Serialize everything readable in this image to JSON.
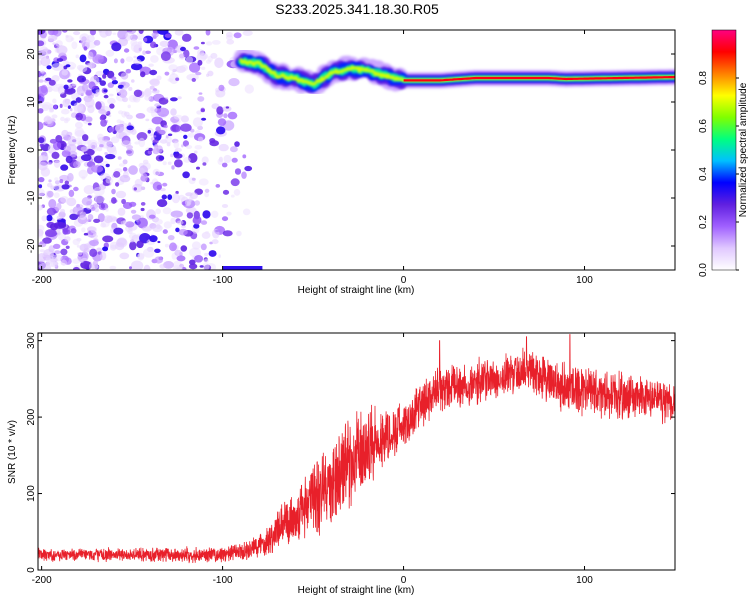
{
  "title": "S233.2025.341.18.30.R05",
  "colors": {
    "snr_line": "#e8202a",
    "frame": "#000000",
    "background": "#ffffff"
  },
  "chart_data": [
    {
      "type": "heatmap",
      "name": "spectrogram",
      "xlabel": "Height of straight line (km)",
      "ylabel": "Frequency (Hz)",
      "xlim": [
        -202,
        150
      ],
      "ylim": [
        -25,
        25
      ],
      "x_ticks": [
        -200,
        -100,
        0,
        100
      ],
      "y_ticks": [
        -20,
        -10,
        0,
        10,
        20
      ],
      "x_tick_labels": [
        "-200",
        "-100",
        "0",
        "100"
      ],
      "y_tick_labels": [
        "-20",
        "-10",
        "0",
        "10",
        "20"
      ],
      "colorbar": {
        "label": "Normalized spectral amplitude",
        "range": [
          0,
          1
        ],
        "ticks": [
          0.0,
          0.2,
          0.4,
          0.6,
          0.8
        ],
        "tick_labels": [
          "0.0",
          "0.2",
          "0.4",
          "0.6",
          "0.8"
        ],
        "colormap": [
          "#ffffff",
          "#e0c8ff",
          "#a060ff",
          "#6020e0",
          "#0000ff",
          "#00c0ff",
          "#00ff80",
          "#80ff00",
          "#ffff00",
          "#ff8000",
          "#ff0000",
          "#ff0080"
        ]
      },
      "signal_ridge": {
        "description_points": [
          {
            "x": -90,
            "y": 18.5
          },
          {
            "x": -80,
            "y": 18.0
          },
          {
            "x": -70,
            "y": 15.5
          },
          {
            "x": -60,
            "y": 15.0
          },
          {
            "x": -50,
            "y": 13.5
          },
          {
            "x": -40,
            "y": 16.0
          },
          {
            "x": -30,
            "y": 17.0
          },
          {
            "x": -20,
            "y": 16.5
          },
          {
            "x": -10,
            "y": 15.5
          },
          {
            "x": 0,
            "y": 14.5
          },
          {
            "x": 20,
            "y": 14.5
          },
          {
            "x": 40,
            "y": 15.0
          },
          {
            "x": 80,
            "y": 15.0
          },
          {
            "x": 90,
            "y": 14.8
          },
          {
            "x": 150,
            "y": 15.2
          }
        ],
        "noise_region_x": [
          -202,
          -85
        ],
        "bottom_blob": {
          "x": [
            -100,
            -78
          ],
          "y": -25
        }
      }
    },
    {
      "type": "line",
      "name": "snr",
      "xlabel": "Height of straight line (km)",
      "ylabel": "SNR (10 * v/v)",
      "xlim": [
        -202,
        150
      ],
      "ylim": [
        0,
        310
      ],
      "x_ticks": [
        -200,
        -100,
        0,
        100
      ],
      "y_ticks": [
        0,
        100,
        200,
        300
      ],
      "x_tick_labels": [
        "-200",
        "-100",
        "0",
        "100"
      ],
      "y_tick_labels": [
        "0",
        "100",
        "200",
        "300"
      ],
      "series_envelope": [
        {
          "x": -202,
          "mean": 20,
          "spread": 10
        },
        {
          "x": -150,
          "mean": 20,
          "spread": 10
        },
        {
          "x": -100,
          "mean": 20,
          "spread": 12
        },
        {
          "x": -85,
          "mean": 25,
          "spread": 15
        },
        {
          "x": -75,
          "mean": 40,
          "spread": 25
        },
        {
          "x": -60,
          "mean": 70,
          "spread": 40
        },
        {
          "x": -50,
          "mean": 95,
          "spread": 60
        },
        {
          "x": -40,
          "mean": 110,
          "spread": 70
        },
        {
          "x": -30,
          "mean": 140,
          "spread": 70
        },
        {
          "x": -20,
          "mean": 160,
          "spread": 60
        },
        {
          "x": -10,
          "mean": 175,
          "spread": 45
        },
        {
          "x": 0,
          "mean": 190,
          "spread": 35
        },
        {
          "x": 10,
          "mean": 215,
          "spread": 35
        },
        {
          "x": 20,
          "mean": 235,
          "spread": 35
        },
        {
          "x": 40,
          "mean": 245,
          "spread": 35
        },
        {
          "x": 60,
          "mean": 255,
          "spread": 35
        },
        {
          "x": 70,
          "mean": 265,
          "spread": 35
        },
        {
          "x": 80,
          "mean": 245,
          "spread": 35
        },
        {
          "x": 90,
          "mean": 240,
          "spread": 40
        },
        {
          "x": 110,
          "mean": 230,
          "spread": 35
        },
        {
          "x": 130,
          "mean": 225,
          "spread": 35
        },
        {
          "x": 150,
          "mean": 220,
          "spread": 30
        }
      ],
      "peaks": [
        {
          "x": 20,
          "y": 300
        },
        {
          "x": 68,
          "y": 305
        },
        {
          "x": 92,
          "y": 308
        }
      ]
    }
  ]
}
